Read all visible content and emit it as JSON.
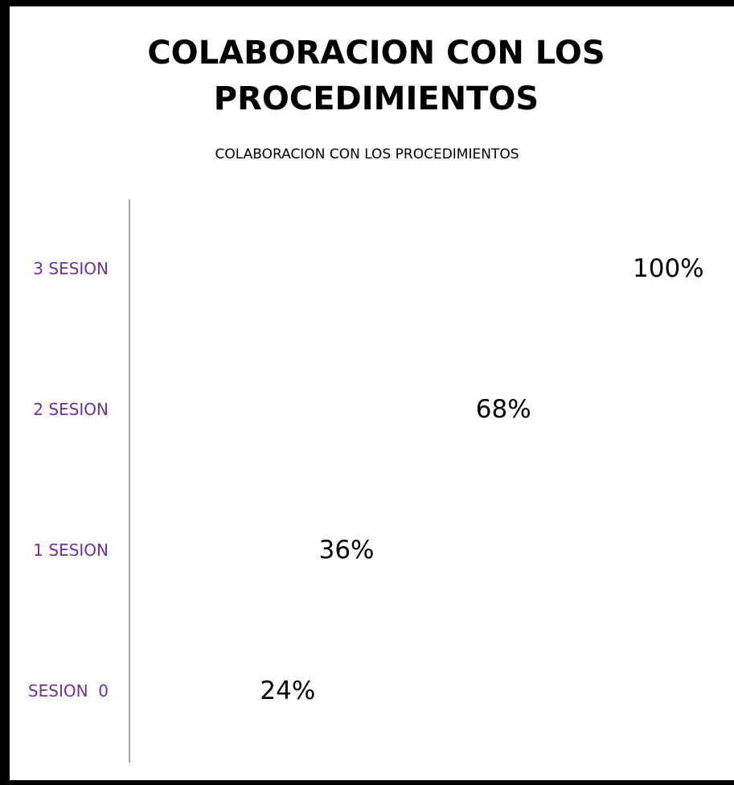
{
  "chart_data": {
    "type": "bar",
    "orientation": "horizontal",
    "title": "COLABORACION CON LOS PROCEDIMIENTOS",
    "subtitle": "COLABORACION CON LOS PROCEDIMIENTOS",
    "categories": [
      "SESION  0",
      "1 SESION",
      "2 SESION",
      "3 SESION"
    ],
    "values": [
      24,
      36,
      68,
      100
    ],
    "value_labels": [
      "24%",
      "36%",
      "68%",
      "100%"
    ],
    "category_color": "#7030a0"
  }
}
